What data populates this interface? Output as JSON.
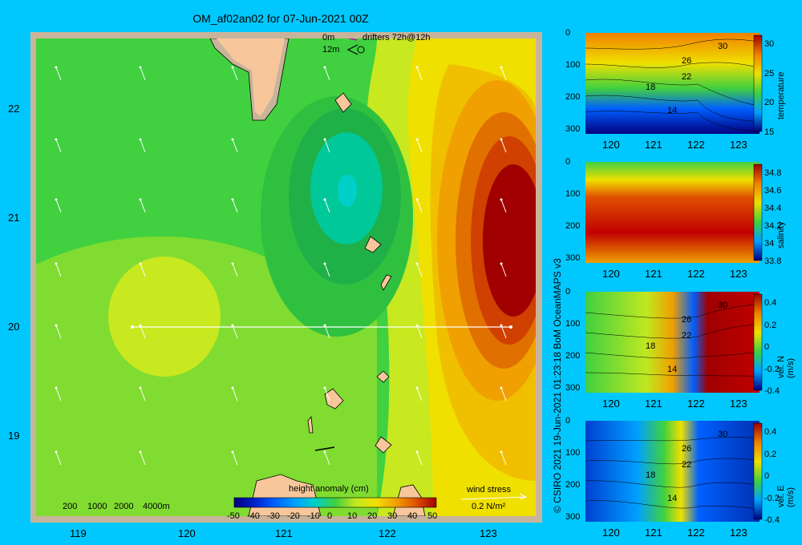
{
  "title": "OM_af02an02 for 07-Jun-2021 00Z",
  "map": {
    "lat_ticks": [
      "22",
      "21",
      "20",
      "19"
    ],
    "lon_ticks": [
      "119",
      "120",
      "121",
      "122",
      "123"
    ],
    "legend_drifters": {
      "depth0": "0m",
      "depth12": "12m",
      "label": "drifters 72h@12h"
    },
    "bathy_labels": [
      "200",
      "1000",
      "2000",
      "4000m"
    ],
    "colorbar": {
      "title": "height anomaly (cm)",
      "ticks": [
        "-50",
        "-40",
        "-30",
        "-20",
        "-10",
        "0",
        "10",
        "20",
        "30",
        "40",
        "50"
      ]
    },
    "wind": {
      "title": "wind stress",
      "scale": "0.2 N/m²"
    }
  },
  "panels": [
    {
      "name": "temperature",
      "label": "temperature",
      "cbar_ticks": [
        "30",
        "25",
        "20",
        "15"
      ],
      "contours": [
        "30",
        "26",
        "22",
        "18",
        "14"
      ],
      "y_ticks": [
        "0",
        "100",
        "200",
        "300"
      ],
      "x_ticks": [
        "120",
        "121",
        "122",
        "123"
      ]
    },
    {
      "name": "salinity",
      "label": "salinity",
      "cbar_ticks": [
        "34.8",
        "34.6",
        "34.4",
        "34.2",
        "34",
        "33.8"
      ],
      "contours": [],
      "y_ticks": [
        "0",
        "100",
        "200",
        "300"
      ],
      "x_ticks": [
        "120",
        "121",
        "122",
        "123"
      ]
    },
    {
      "name": "vel-n",
      "label": "vel. N (m/s)",
      "cbar_ticks": [
        "0.4",
        "0.2",
        "0",
        "-0.2",
        "-0.4"
      ],
      "contours": [
        "30",
        "26",
        "22",
        "18",
        "14"
      ],
      "y_ticks": [
        "0",
        "100",
        "200",
        "300"
      ],
      "x_ticks": [
        "120",
        "121",
        "122",
        "123"
      ]
    },
    {
      "name": "vel-e",
      "label": "vel. E (m/s)",
      "cbar_ticks": [
        "0.4",
        "0.2",
        "0",
        "-0.2",
        "-0.4"
      ],
      "contours": [
        "30",
        "26",
        "22",
        "18",
        "14"
      ],
      "y_ticks": [
        "0",
        "100",
        "200",
        "300"
      ],
      "x_ticks": [
        "120",
        "121",
        "122",
        "123"
      ]
    }
  ],
  "credit": "© CSIRO 2021  19-Jun-2021 01:23:18 BoM OceanMAPS v3",
  "colors": {
    "background": "#00c8ff",
    "land": "#f7c79b",
    "frame": "#c8b49a"
  }
}
